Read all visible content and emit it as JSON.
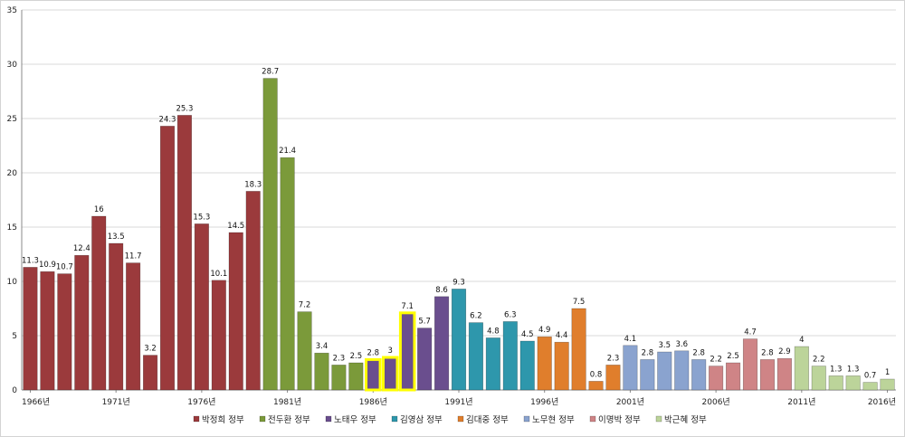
{
  "chart_data": {
    "type": "bar",
    "x": [
      "1966년",
      "1967년",
      "1968년",
      "1969년",
      "1970년",
      "1971년",
      "1972년",
      "1973년",
      "1974년",
      "1975년",
      "1976년",
      "1977년",
      "1978년",
      "1979년",
      "1980년",
      "1981년",
      "1982년",
      "1983년",
      "1984년",
      "1985년",
      "1986년",
      "1987년",
      "1988년",
      "1989년",
      "1990년",
      "1991년",
      "1992년",
      "1993년",
      "1994년",
      "1995년",
      "1996년",
      "1997년",
      "1998년",
      "1999년",
      "2000년",
      "2001년",
      "2002년",
      "2003년",
      "2004년",
      "2005년",
      "2006년",
      "2007년",
      "2008년",
      "2009년",
      "2010년",
      "2011년",
      "2012년",
      "2013년",
      "2014년",
      "2015년",
      "2016년"
    ],
    "x_tick_labels": [
      "1966년",
      "1971년",
      "1976년",
      "1981년",
      "1986년",
      "1991년",
      "1996년",
      "2001년",
      "2006년",
      "2011년",
      "2016년"
    ],
    "values": [
      11.3,
      10.9,
      10.7,
      12.4,
      16,
      13.5,
      11.7,
      3.2,
      24.3,
      25.3,
      15.3,
      10.1,
      14.5,
      18.3,
      28.7,
      21.4,
      7.2,
      3.4,
      2.3,
      2.5,
      2.8,
      3,
      7.1,
      5.7,
      8.6,
      9.3,
      6.2,
      4.8,
      6.3,
      4.5,
      4.9,
      4.4,
      7.5,
      0.8,
      2.3,
      4.1,
      2.8,
      3.5,
      3.6,
      2.8,
      2.2,
      2.5,
      4.7,
      2.8,
      2.9,
      4,
      2.2,
      1.3,
      1.3,
      0.7,
      1
    ],
    "data_labels": [
      "11.3",
      "10.9",
      "10.7",
      "12.4",
      "16",
      "13.5",
      "11.7",
      "3.2",
      "24.3",
      "25.3",
      "15.3",
      "10.1",
      "14.5",
      "18.3",
      "28.7",
      "21.4",
      "7.2",
      "3.4",
      "2.3",
      "2.5",
      "2.8",
      "3",
      "7.1",
      "5.7",
      "8.6",
      "9.3",
      "6.2",
      "4.8",
      "6.3",
      "4.5",
      "4.9",
      "4.4",
      "7.5",
      "0.8",
      "2.3",
      "4.1",
      "2.8",
      "3.5",
      "3.6",
      "2.8",
      "2.2",
      "2.5",
      "4.7",
      "2.8",
      "2.9",
      "4",
      "2.2",
      "1.3",
      "1.3",
      "0.7",
      "1"
    ],
    "groups": [
      {
        "name": "박정희 정부",
        "color": "#9b3a3c",
        "count": 14
      },
      {
        "name": "전두환 정부",
        "color": "#7b9a3a",
        "count": 6
      },
      {
        "name": "노태우 정부",
        "color": "#6a4e8e",
        "count": 5
      },
      {
        "name": "김영삼 정부",
        "color": "#2e97ac",
        "count": 5
      },
      {
        "name": "김대중 정부",
        "color": "#e07e2c",
        "count": 5
      },
      {
        "name": "노무현 정부",
        "color": "#8aa3cf",
        "count": 5
      },
      {
        "name": "이명박 정부",
        "color": "#cf8486",
        "count": 5
      },
      {
        "name": "박근혜 정부",
        "color": "#bcd49a",
        "count": 6
      }
    ],
    "highlighted_years": [
      "1986년",
      "1987년",
      "1988년"
    ],
    "highlight_color": "#ffff00",
    "ylim": [
      0,
      35
    ],
    "yticks": [
      0,
      5,
      10,
      15,
      20,
      25,
      30,
      35
    ],
    "ytick_labels": [
      "0",
      "5",
      "10",
      "15",
      "20",
      "25",
      "30",
      "35"
    ],
    "grid": true,
    "legend_position": "bottom",
    "title": "",
    "xlabel": "",
    "ylabel": ""
  }
}
